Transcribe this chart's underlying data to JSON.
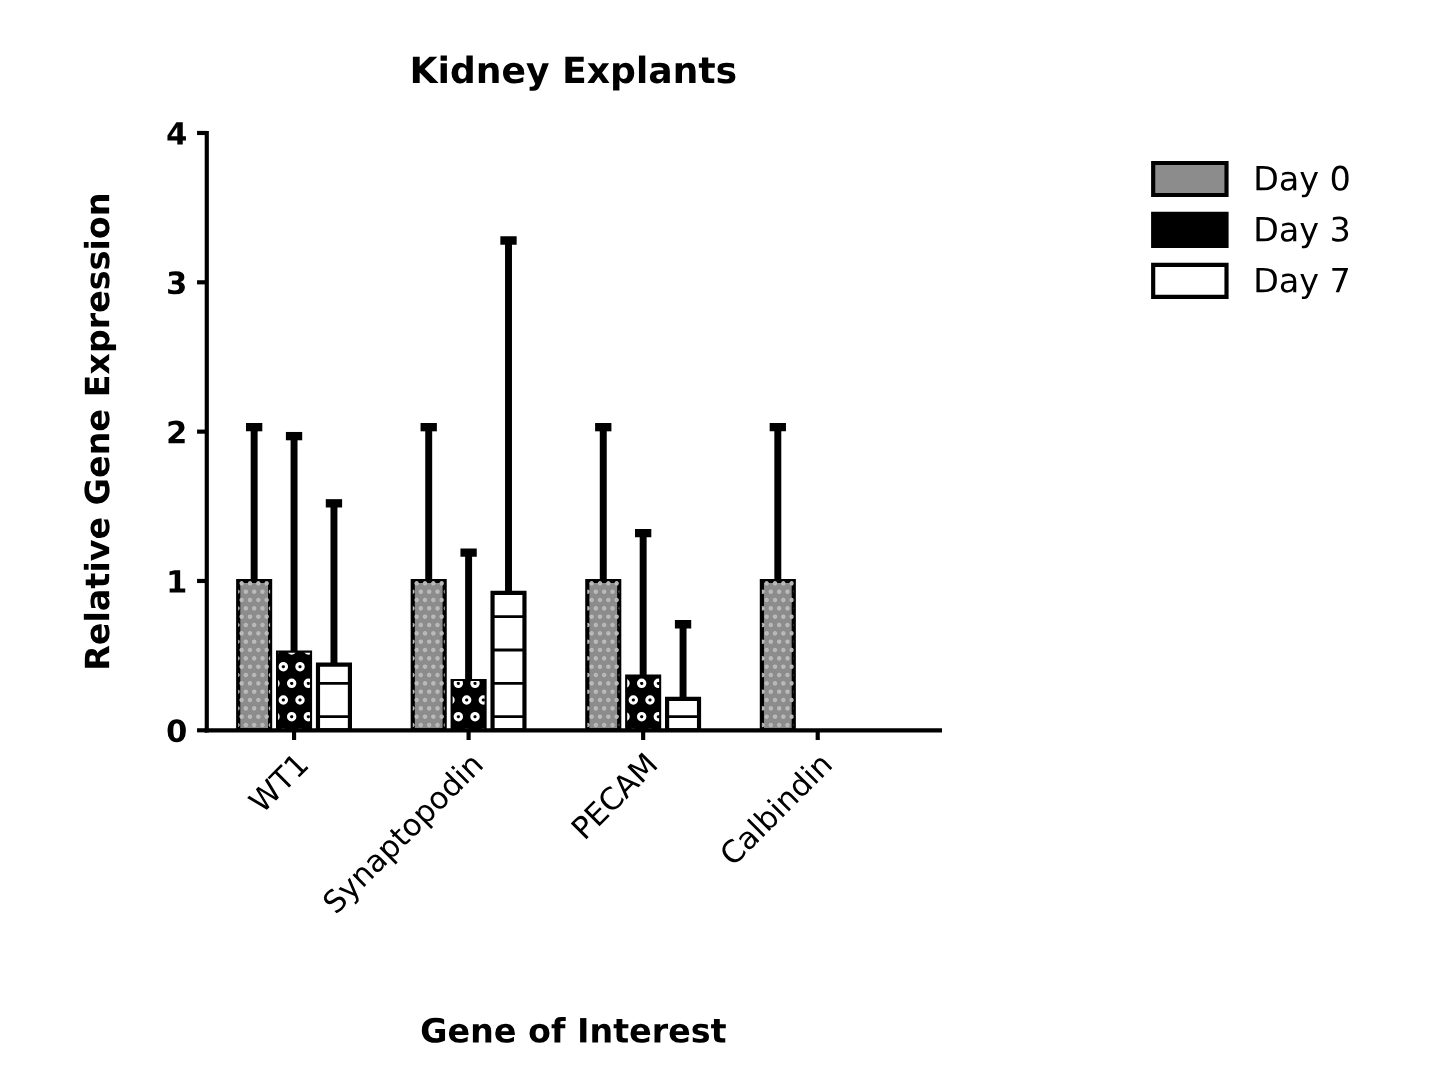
{
  "chart_data": {
    "type": "bar",
    "title": "Kidney Explants",
    "xlabel": "Gene of Interest",
    "ylabel": "Relative Gene Expression",
    "categories": [
      "WT1",
      "Synaptopodin",
      "PECAM",
      "Calbindin"
    ],
    "series": [
      {
        "name": "Day 0",
        "color": "#8c8c8c",
        "values": [
          1.0,
          1.0,
          1.0,
          1.0
        ],
        "errors": [
          [
            1.0,
            2.03
          ],
          [
            1.0,
            2.03
          ],
          [
            1.0,
            2.03
          ],
          [
            1.0,
            2.03
          ]
        ]
      },
      {
        "name": "Day 3",
        "color": "#000000",
        "values": [
          0.52,
          0.33,
          0.36,
          null
        ],
        "errors": [
          [
            0.52,
            1.97
          ],
          [
            0.33,
            1.19
          ],
          [
            0.36,
            1.32
          ],
          null
        ]
      },
      {
        "name": "Day 7",
        "color": "#ffffff",
        "values": [
          0.44,
          0.92,
          0.21,
          null
        ],
        "errors": [
          [
            0.44,
            1.52
          ],
          [
            0.92,
            3.28
          ],
          [
            0.21,
            0.71
          ],
          null
        ]
      }
    ],
    "ylim": [
      0,
      4
    ],
    "yticks": [
      0,
      1,
      2,
      3,
      4
    ],
    "grid": false,
    "legend": "top right"
  }
}
